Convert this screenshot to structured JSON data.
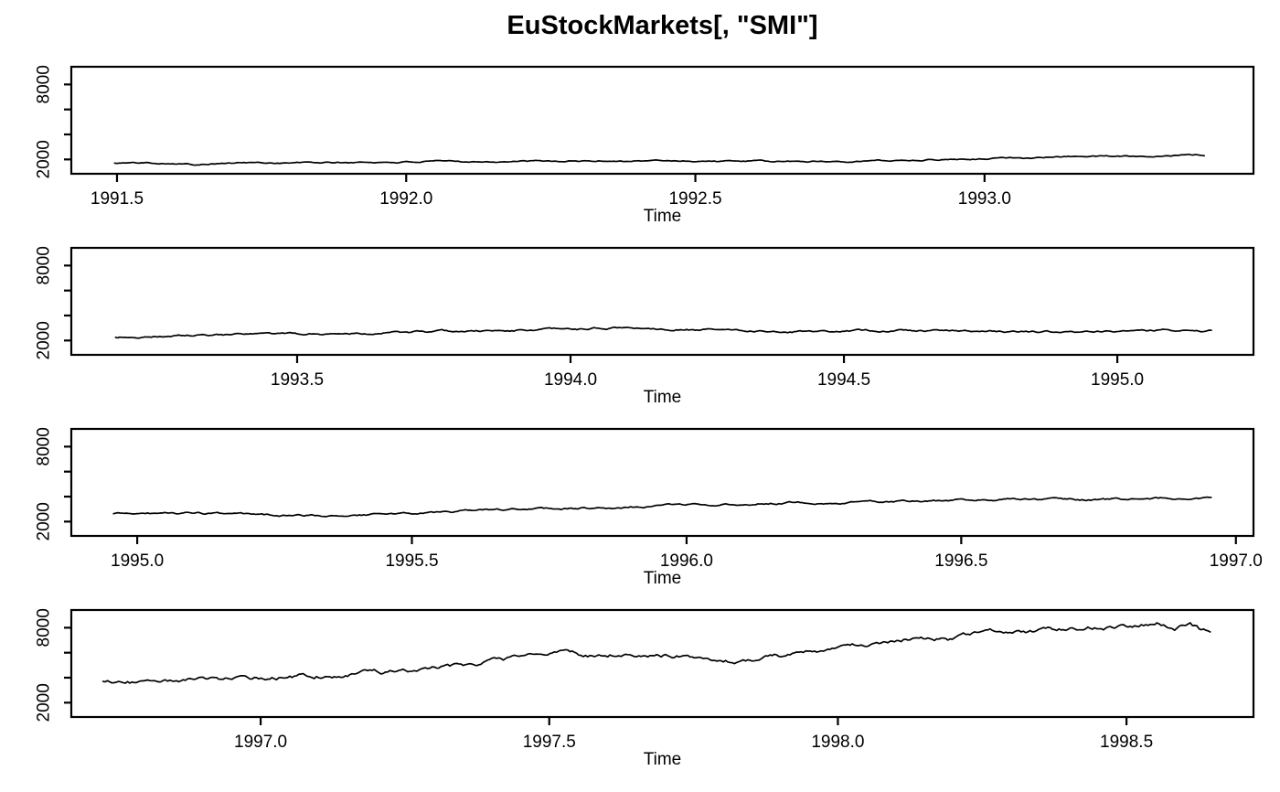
{
  "page": {
    "background": "#ffffff",
    "text_color": "#000000"
  },
  "chart_data": {
    "type": "line",
    "title": "EuStockMarkets[, \"SMI\"]",
    "series_name": "SMI",
    "line_color": "#000000",
    "xlabel": "Time",
    "ylabel": "",
    "grid": false,
    "legend": "none",
    "ylim": [
      852,
      9417
    ],
    "y_ticks": [
      2000,
      4000,
      6000,
      8000
    ],
    "y_tick_labels": [
      "2000",
      "",
      "",
      "8000"
    ],
    "points_per_year": 260,
    "panels": [
      {
        "name": "panel-1991-1993",
        "xlim": [
          1991.421,
          1993.465
        ],
        "x_ticks": [
          1991.5,
          1992.0,
          1992.5,
          1993.0
        ],
        "x_tick_labels": [
          "1991.5",
          "1992.0",
          "1992.5",
          "1993.0"
        ],
        "data_range": [
          1991.496,
          1993.38
        ],
        "keypoints": [
          [
            1991.496,
            1705
          ],
          [
            1991.55,
            1730
          ],
          [
            1991.6,
            1715
          ],
          [
            1991.628,
            1605
          ],
          [
            1991.636,
            1587
          ],
          [
            1991.65,
            1680
          ],
          [
            1991.72,
            1740
          ],
          [
            1991.8,
            1725
          ],
          [
            1991.88,
            1745
          ],
          [
            1991.96,
            1770
          ],
          [
            1992.05,
            1820
          ],
          [
            1992.15,
            1845
          ],
          [
            1992.25,
            1830
          ],
          [
            1992.35,
            1885
          ],
          [
            1992.45,
            1905
          ],
          [
            1992.55,
            1860
          ],
          [
            1992.65,
            1830
          ],
          [
            1992.75,
            1865
          ],
          [
            1992.85,
            1935
          ],
          [
            1992.95,
            2025
          ],
          [
            1993.05,
            2125
          ],
          [
            1993.15,
            2225
          ],
          [
            1993.25,
            2285
          ],
          [
            1993.32,
            2325
          ],
          [
            1993.38,
            2360
          ]
        ]
      },
      {
        "name": "panel-1993-1995",
        "xlim": [
          1993.087,
          1995.249
        ],
        "x_ticks": [
          1993.5,
          1994.0,
          1994.5,
          1995.0
        ],
        "x_tick_labels": [
          "1993.5",
          "1994.0",
          "1994.5",
          "1995.0"
        ],
        "data_range": [
          1993.168,
          1995.172
        ],
        "keypoints": [
          [
            1993.168,
            2250
          ],
          [
            1993.25,
            2340
          ],
          [
            1993.35,
            2420
          ],
          [
            1993.45,
            2485
          ],
          [
            1993.55,
            2555
          ],
          [
            1993.65,
            2615
          ],
          [
            1993.75,
            2685
          ],
          [
            1993.85,
            2765
          ],
          [
            1993.95,
            2845
          ],
          [
            1994.02,
            2895
          ],
          [
            1994.08,
            3020
          ],
          [
            1994.13,
            2975
          ],
          [
            1994.2,
            2925
          ],
          [
            1994.28,
            2850
          ],
          [
            1994.36,
            2760
          ],
          [
            1994.45,
            2720
          ],
          [
            1994.55,
            2775
          ],
          [
            1994.63,
            2815
          ],
          [
            1994.72,
            2755
          ],
          [
            1994.8,
            2725
          ],
          [
            1994.88,
            2685
          ],
          [
            1994.95,
            2665
          ],
          [
            1995.03,
            2795
          ],
          [
            1995.1,
            2825
          ],
          [
            1995.172,
            2775
          ]
        ]
      },
      {
        "name": "panel-1995-1997",
        "xlim": [
          1994.88,
          1997.032
        ],
        "x_ticks": [
          1995.0,
          1995.5,
          1996.0,
          1996.5,
          1997.0
        ],
        "x_tick_labels": [
          "1995.0",
          "1995.5",
          "1996.0",
          "1996.5",
          "1997.0"
        ],
        "data_range": [
          1994.957,
          1996.955
        ],
        "keypoints": [
          [
            1994.957,
            2630
          ],
          [
            1995.02,
            2675
          ],
          [
            1995.08,
            2695
          ],
          [
            1995.15,
            2615
          ],
          [
            1995.22,
            2525
          ],
          [
            1995.3,
            2455
          ],
          [
            1995.38,
            2505
          ],
          [
            1995.46,
            2590
          ],
          [
            1995.54,
            2730
          ],
          [
            1995.62,
            2830
          ],
          [
            1995.68,
            2950
          ],
          [
            1995.8,
            3050
          ],
          [
            1995.92,
            3210
          ],
          [
            1996.0,
            3380
          ],
          [
            1996.06,
            3340
          ],
          [
            1996.16,
            3480
          ],
          [
            1996.22,
            3560
          ],
          [
            1996.3,
            3520
          ],
          [
            1996.4,
            3600
          ],
          [
            1996.52,
            3720
          ],
          [
            1996.62,
            3760
          ],
          [
            1996.72,
            3730
          ],
          [
            1996.8,
            3800
          ],
          [
            1996.88,
            3870
          ],
          [
            1996.955,
            3910
          ]
        ]
      },
      {
        "name": "panel-1997-1998",
        "xlim": [
          1996.672,
          1998.72
        ],
        "x_ticks": [
          1997.0,
          1997.5,
          1998.0,
          1998.5
        ],
        "x_tick_labels": [
          "1997.0",
          "1997.5",
          "1998.0",
          "1998.5"
        ],
        "data_range": [
          1996.727,
          1998.645
        ],
        "keypoints": [
          [
            1996.727,
            3705
          ],
          [
            1996.78,
            3660
          ],
          [
            1996.85,
            3740
          ],
          [
            1996.93,
            3860
          ],
          [
            1997.0,
            3990
          ],
          [
            1997.08,
            4130
          ],
          [
            1997.16,
            4310
          ],
          [
            1997.24,
            4500
          ],
          [
            1997.32,
            4800
          ],
          [
            1997.4,
            5250
          ],
          [
            1997.47,
            5700
          ],
          [
            1997.53,
            6050
          ],
          [
            1997.58,
            5680
          ],
          [
            1997.63,
            5900
          ],
          [
            1997.68,
            5620
          ],
          [
            1997.73,
            5780
          ],
          [
            1997.78,
            5480
          ],
          [
            1997.83,
            5320
          ],
          [
            1997.88,
            5600
          ],
          [
            1997.94,
            5900
          ],
          [
            1998.0,
            6270
          ],
          [
            1998.05,
            6620
          ],
          [
            1998.1,
            6960
          ],
          [
            1998.14,
            7300
          ],
          [
            1998.19,
            7090
          ],
          [
            1998.24,
            7500
          ],
          [
            1998.28,
            7860
          ],
          [
            1998.33,
            7560
          ],
          [
            1998.38,
            7760
          ],
          [
            1998.44,
            7960
          ],
          [
            1998.49,
            8110
          ],
          [
            1998.53,
            8290
          ],
          [
            1998.555,
            8412
          ],
          [
            1998.585,
            8060
          ],
          [
            1998.61,
            8260
          ],
          [
            1998.63,
            7720
          ],
          [
            1998.645,
            7790
          ]
        ]
      }
    ]
  }
}
